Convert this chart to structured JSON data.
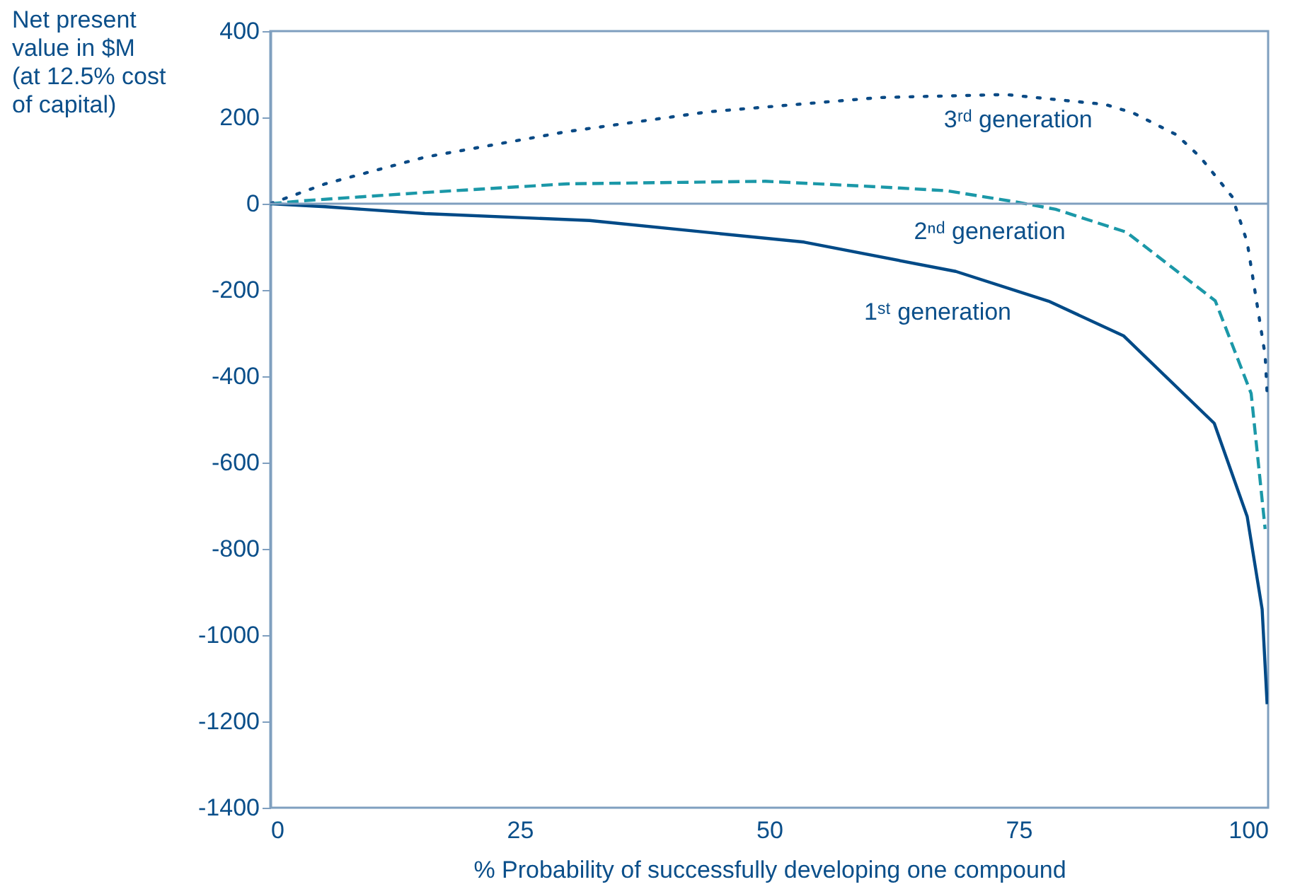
{
  "chart_data": {
    "type": "line",
    "xlabel": "% Probability of successfully developing one compound",
    "ylabel": "Net present value in $M (at 12.5% cost of capital)",
    "xlim": [
      0,
      100
    ],
    "xticks": [
      0,
      25,
      50,
      75,
      100
    ],
    "ylim": [
      -1400,
      400
    ],
    "yticks": [
      -1400,
      -1200,
      -1000,
      -800,
      -600,
      -400,
      -200,
      0,
      200,
      400
    ],
    "grid": false,
    "marker": "none",
    "ref_lines": [
      {
        "axis": "y",
        "value": 0,
        "color": "#7f9fbf"
      }
    ],
    "series": [
      {
        "name": "1ˢᵗ generation",
        "color": "#004a87",
        "line_style": "solid",
        "x": [
          0,
          5.5,
          15.5,
          32,
          53.5,
          68.7,
          78,
          85.5,
          94.6,
          97.9,
          99.4,
          99.9
        ],
        "values": [
          0,
          -7,
          -23,
          -39,
          -89,
          -157,
          -226,
          -306,
          -509,
          -725,
          -940,
          -1160
        ]
      },
      {
        "name": "2ⁿᵈ generation",
        "color": "#1b98a8",
        "line_style": "dashed",
        "x": [
          0,
          3.4,
          15.5,
          29.7,
          49.6,
          61,
          67.8,
          75,
          78.7,
          85.8,
          94.7,
          98.3,
          99.7
        ],
        "values": [
          0,
          7,
          26,
          46,
          52,
          39,
          30,
          3,
          -13,
          -66,
          -225,
          -440,
          -754
        ]
      },
      {
        "name": "3ʳᵈ generation",
        "color": "#0a4a85",
        "line_style": "dotted",
        "x": [
          0,
          5.5,
          15.5,
          29.7,
          43.9,
          61,
          73.7,
          83.7,
          86.5,
          90.8,
          93.2,
          96.4,
          97.9,
          99.7,
          99.9
        ],
        "values": [
          0,
          46,
          108,
          167,
          213,
          246,
          253,
          230,
          210,
          160,
          108,
          16,
          -89,
          -351,
          -440
        ]
      }
    ]
  }
}
